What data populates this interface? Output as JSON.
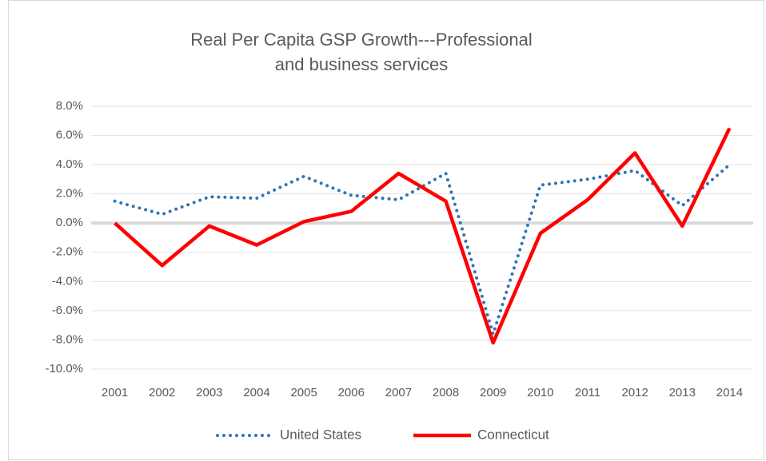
{
  "chart_data": {
    "type": "line",
    "title": "Real Per Capita GSP Growth---Professional and business services",
    "categories": [
      "2001",
      "2002",
      "2003",
      "2004",
      "2005",
      "2006",
      "2007",
      "2008",
      "2009",
      "2010",
      "2011",
      "2012",
      "2013",
      "2014"
    ],
    "series": [
      {
        "name": "United States",
        "color": "#2e75b6",
        "dash": "dotted",
        "values": [
          1.5,
          0.6,
          1.8,
          1.7,
          3.2,
          1.9,
          1.6,
          3.4,
          -7.6,
          2.6,
          3.0,
          3.6,
          1.2,
          4.0
        ]
      },
      {
        "name": "Connecticut",
        "color": "#ff0000",
        "dash": "solid",
        "values": [
          0.0,
          -2.9,
          -0.2,
          -1.5,
          0.1,
          0.8,
          3.4,
          1.5,
          -8.2,
          -0.7,
          1.6,
          4.8,
          -0.2,
          6.5
        ]
      }
    ],
    "ylim": [
      -10,
      8
    ],
    "yticks": [
      {
        "value": -10,
        "label": "-10.0%"
      },
      {
        "value": -8,
        "label": "-8.0%"
      },
      {
        "value": -6,
        "label": "-6.0%"
      },
      {
        "value": -4,
        "label": "-4.0%"
      },
      {
        "value": -2,
        "label": "-2.0%"
      },
      {
        "value": 0,
        "label": "0.0%"
      },
      {
        "value": 2,
        "label": "2.0%"
      },
      {
        "value": 4,
        "label": "4.0%"
      },
      {
        "value": 6,
        "label": "6.0%"
      },
      {
        "value": 8,
        "label": "8.0%"
      }
    ],
    "grid": true,
    "legend": "bottom"
  }
}
